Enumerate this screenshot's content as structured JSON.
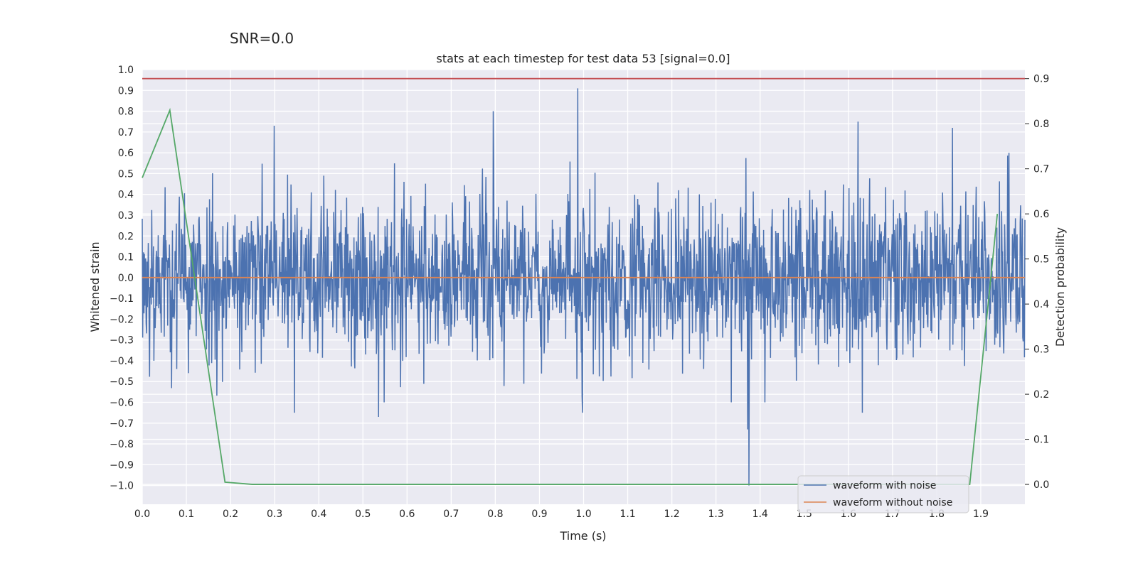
{
  "suptitle": "SNR=0.0",
  "chart_data": {
    "type": "line",
    "title": "stats at each timestep for test data 53 [signal=0.0]",
    "xlabel": "Time (s)",
    "ylabel": "Whitened strain",
    "y2label": "Detection probability",
    "xlim": [
      0.0,
      2.0
    ],
    "ylim": [
      -1.09,
      1.0
    ],
    "y2lim": [
      -0.044,
      0.92
    ],
    "xticks": [
      "0.0",
      "0.1",
      "0.2",
      "0.3",
      "0.4",
      "0.5",
      "0.6",
      "0.7",
      "0.8",
      "0.9",
      "1.0",
      "1.1",
      "1.2",
      "1.3",
      "1.4",
      "1.5",
      "1.6",
      "1.7",
      "1.8",
      "1.9"
    ],
    "yticks": [
      "1.0",
      "0.9",
      "0.8",
      "0.7",
      "0.6",
      "0.5",
      "0.4",
      "0.3",
      "0.2",
      "0.1",
      "0.0",
      "−0.1",
      "−0.2",
      "−0.3",
      "−0.4",
      "−0.5",
      "−0.6",
      "−0.7",
      "−0.8",
      "−0.9",
      "−1.0"
    ],
    "y2ticks": [
      "0.9",
      "0.8",
      "0.7",
      "0.6",
      "0.5",
      "0.4",
      "0.3",
      "0.2",
      "0.1",
      "0.0"
    ],
    "grid": true,
    "legend_position": "bottom-right",
    "series": [
      {
        "name": "waveform with noise",
        "axis": "left",
        "color": "#4c72b0",
        "sample_count": 2048,
        "amplitude_rms": 0.2,
        "extremes": [
          {
            "x": 0.987,
            "y": 0.91
          },
          {
            "x": 0.795,
            "y": 0.8
          },
          {
            "x": 1.622,
            "y": 0.75
          },
          {
            "x": 1.836,
            "y": 0.72
          },
          {
            "x": 0.299,
            "y": 0.73
          },
          {
            "x": 1.375,
            "y": -1.0
          },
          {
            "x": 1.372,
            "y": -0.73
          },
          {
            "x": 0.535,
            "y": -0.67
          },
          {
            "x": 0.345,
            "y": -0.65
          },
          {
            "x": 1.632,
            "y": -0.65
          },
          {
            "x": 0.998,
            "y": -0.65
          }
        ]
      },
      {
        "name": "waveform without noise",
        "axis": "left",
        "color": "#dd8452",
        "x": [
          0.0,
          2.0
        ],
        "y": [
          0.0,
          0.0
        ]
      },
      {
        "name": "",
        "axis": "right",
        "color": "#55a868",
        "x": [
          0.0,
          0.0625,
          0.1875,
          0.25,
          1.875,
          1.9375
        ],
        "y": [
          0.68,
          0.83,
          0.005,
          0.0,
          0.0,
          0.6
        ]
      },
      {
        "name": "",
        "axis": "right",
        "color": "#c44e52",
        "x": [
          0.0,
          2.0
        ],
        "y": [
          0.9,
          0.9
        ]
      }
    ]
  }
}
